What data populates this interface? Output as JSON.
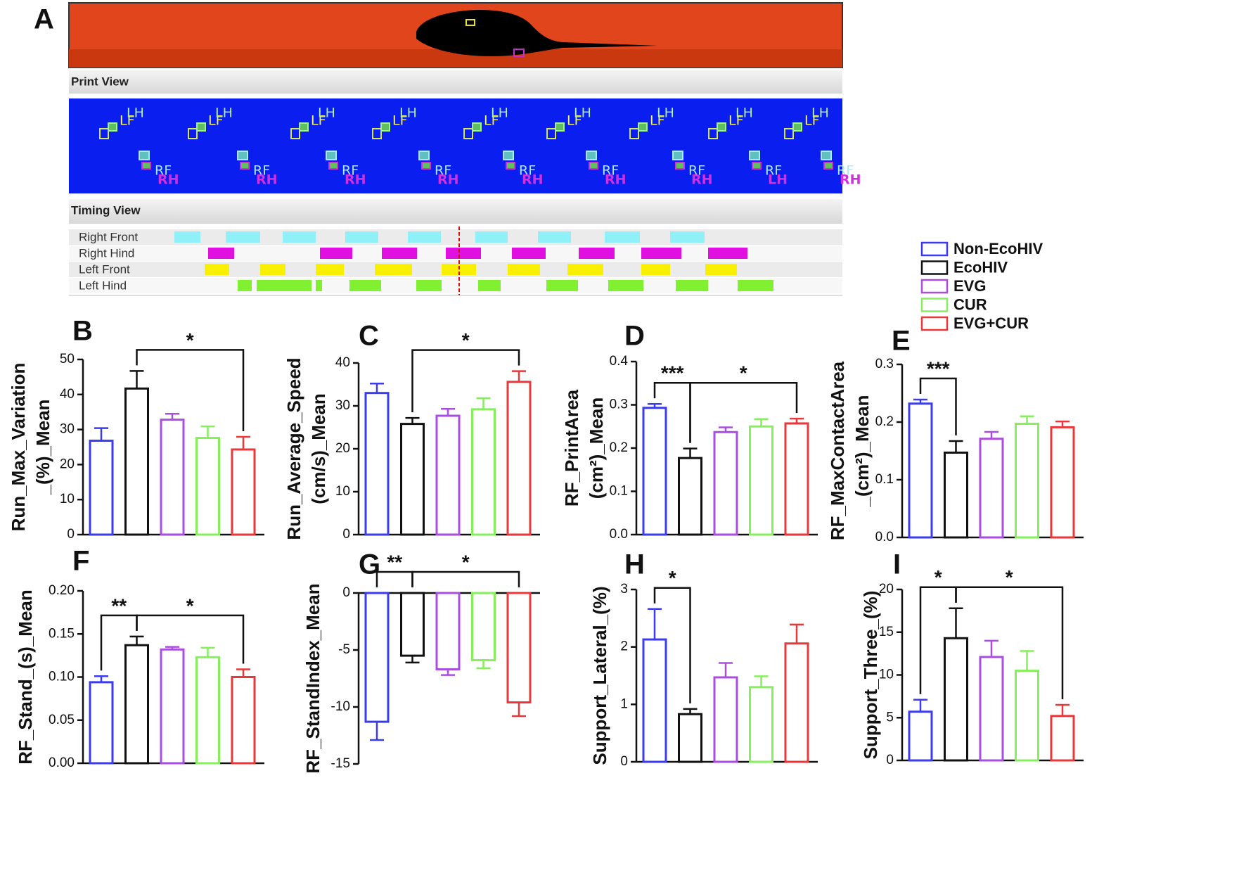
{
  "panel_a": {
    "label": "A",
    "print_view": {
      "title": "Print View",
      "prints": [
        [
          "LF",
          "LH",
          "RF",
          "RH"
        ],
        [
          "LF",
          "LH",
          "RF",
          "RH"
        ],
        [
          "LF",
          "LH",
          "RF",
          "RH"
        ],
        [
          "LF",
          "LH",
          "RF",
          "RH"
        ],
        [
          "LF",
          "LH",
          "RF",
          "RH"
        ],
        [
          "LF",
          "LH",
          "RF",
          "RH"
        ],
        [
          "LF",
          "LH",
          "RF",
          "RH"
        ],
        [
          "LF",
          "LH",
          "RF",
          "LH"
        ],
        [
          "LF",
          "LH",
          "RF",
          "RH"
        ]
      ]
    },
    "timing_view": {
      "title": "Timing View",
      "rows": [
        "Right Front",
        "Right Hind",
        "Left Front",
        "Left Hind"
      ]
    }
  },
  "legend": [
    {
      "name": "Non-EcoHIV",
      "color": "#3b3bf0"
    },
    {
      "name": "EcoHIV",
      "color": "#111111"
    },
    {
      "name": "EVG",
      "color": "#a94ee0"
    },
    {
      "name": "CUR",
      "color": "#86ef5c"
    },
    {
      "name": "EVG+CUR",
      "color": "#e8383a"
    }
  ],
  "chart_data": [
    {
      "type": "bar",
      "panel": "B",
      "ylabel": [
        "Run_Max_Variation",
        "_(%)_Mean"
      ],
      "values": [
        26.8,
        41.7,
        32.8,
        27.6,
        24.3
      ],
      "errors": [
        3.6,
        5.0,
        1.7,
        3.3,
        3.6
      ],
      "ylim": [
        0,
        50
      ],
      "yticks": [
        0,
        10,
        20,
        30,
        40,
        50
      ],
      "significance": [
        {
          "label": "*",
          "groups": [
            "EcoHIV",
            "EVG+CUR"
          ]
        }
      ]
    },
    {
      "type": "bar",
      "panel": "C",
      "ylabel": [
        "Run_Average_Speed",
        "(cm/s)_Mean"
      ],
      "values": [
        33.0,
        25.8,
        27.7,
        29.2,
        35.6
      ],
      "errors": [
        2.2,
        1.4,
        1.6,
        2.6,
        2.5
      ],
      "ylim": [
        0,
        40
      ],
      "yticks": [
        0,
        10,
        20,
        30,
        40
      ],
      "significance": [
        {
          "label": "*",
          "groups": [
            "EcoHIV",
            "EVG+CUR"
          ]
        }
      ]
    },
    {
      "type": "bar",
      "panel": "D",
      "ylabel": [
        "RF_PrintArea",
        "(cm²)_Mean"
      ],
      "values": [
        0.293,
        0.177,
        0.237,
        0.25,
        0.257
      ],
      "errors": [
        0.009,
        0.022,
        0.011,
        0.017,
        0.011
      ],
      "ylim": [
        0,
        0.4
      ],
      "yticks": [
        {
          "value": 0,
          "label": "0.0"
        },
        0.1,
        0.2,
        0.3,
        0.4
      ],
      "significance": [
        {
          "label": "***",
          "groups": [
            "Non-EcoHIV",
            "EcoHIV"
          ]
        },
        {
          "label": "*",
          "groups": [
            "EcoHIV",
            "EVG+CUR"
          ]
        }
      ]
    },
    {
      "type": "bar",
      "panel": "E",
      "ylabel": [
        "RF_MaxContactArea",
        "_(cm²)_Mean"
      ],
      "values": [
        0.232,
        0.147,
        0.171,
        0.197,
        0.191
      ],
      "errors": [
        0.007,
        0.02,
        0.012,
        0.013,
        0.01
      ],
      "ylim": [
        0,
        0.3
      ],
      "yticks": [
        {
          "value": 0,
          "label": "0.0"
        },
        0.1,
        0.2,
        0.3
      ],
      "significance": [
        {
          "label": "***",
          "groups": [
            "Non-EcoHIV",
            "EcoHIV"
          ]
        }
      ]
    },
    {
      "type": "bar",
      "panel": "F",
      "ylabel": [
        "RF_Stand_(s)_Mean"
      ],
      "values": [
        0.094,
        0.137,
        0.132,
        0.123,
        0.1
      ],
      "errors": [
        0.007,
        0.01,
        0.003,
        0.011,
        0.009
      ],
      "ylim": [
        0,
        0.2
      ],
      "yticks": [
        {
          "value": 0,
          "label": "0.00"
        },
        0.05,
        {
          "value": 0.1,
          "label": "0.10"
        },
        0.15,
        {
          "value": 0.2,
          "label": "0.20"
        }
      ],
      "significance": [
        {
          "label": "**",
          "groups": [
            "Non-EcoHIV",
            "EcoHIV"
          ]
        },
        {
          "label": "*",
          "groups": [
            "EcoHIV",
            "EVG+CUR"
          ]
        }
      ]
    },
    {
      "type": "bar",
      "panel": "G",
      "ylabel": [
        "RF_StandIndex_Mean"
      ],
      "values": [
        -11.3,
        -5.5,
        -6.7,
        -5.9,
        -9.6
      ],
      "errors": [
        1.6,
        0.6,
        0.5,
        0.7,
        1.2
      ],
      "ylim": [
        -15,
        0
      ],
      "yticks": [
        -15,
        -10,
        -5,
        0
      ],
      "significance": [
        {
          "label": "**",
          "groups": [
            "Non-EcoHIV",
            "EcoHIV"
          ]
        },
        {
          "label": "*",
          "groups": [
            "EcoHIV",
            "EVG+CUR"
          ]
        }
      ]
    },
    {
      "type": "bar",
      "panel": "H",
      "ylabel": [
        "Support_Lateral_(%)"
      ],
      "values": [
        2.13,
        0.83,
        1.47,
        1.3,
        2.06
      ],
      "errors": [
        0.53,
        0.09,
        0.25,
        0.19,
        0.33
      ],
      "ylim": [
        0,
        3
      ],
      "yticks": [
        0,
        1,
        2,
        3
      ],
      "significance": [
        {
          "label": "*",
          "groups": [
            "Non-EcoHIV",
            "EcoHIV"
          ]
        }
      ]
    },
    {
      "type": "bar",
      "panel": "I",
      "ylabel": [
        "Support_Three_(%)"
      ],
      "values": [
        5.7,
        14.3,
        12.1,
        10.5,
        5.2
      ],
      "errors": [
        1.4,
        3.5,
        1.9,
        2.3,
        1.3
      ],
      "ylim": [
        0,
        20
      ],
      "yticks": [
        0,
        5,
        10,
        15,
        20
      ],
      "significance": [
        {
          "label": "*",
          "groups": [
            "Non-EcoHIV",
            "EcoHIV"
          ]
        },
        {
          "label": "*",
          "groups": [
            "EcoHIV",
            "EVG+CUR"
          ]
        }
      ]
    }
  ]
}
